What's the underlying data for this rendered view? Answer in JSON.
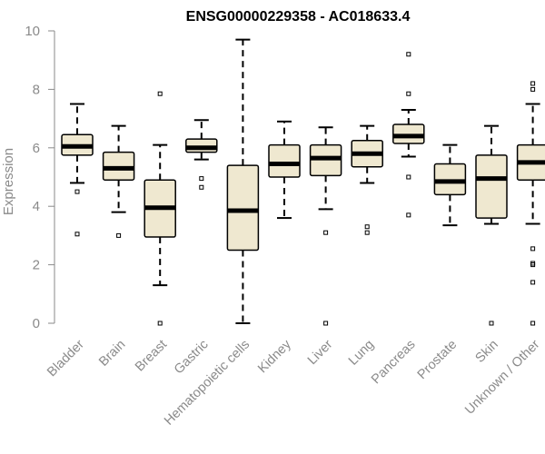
{
  "chart_data": {
    "type": "box",
    "title": "ENSG00000229358 - AC018633.4",
    "xlabel": "",
    "ylabel": "Expression",
    "ylim": [
      0,
      10
    ],
    "yticks": [
      0,
      2,
      4,
      6,
      8,
      10
    ],
    "grid": false,
    "box_fill": "#efe8d0",
    "categories": [
      "Bladder",
      "Brain",
      "Breast",
      "Gastric",
      "Hematopoietic cells",
      "Kidney",
      "Liver",
      "Lung",
      "Pancreas",
      "Prostate",
      "Skin",
      "Unknown / Other"
    ],
    "boxes": [
      {
        "category": "Bladder",
        "whisker_low": 4.8,
        "q1": 5.75,
        "median": 6.05,
        "q3": 6.45,
        "whisker_high": 7.5,
        "outliers": [
          4.5,
          3.05
        ]
      },
      {
        "category": "Brain",
        "whisker_low": 3.8,
        "q1": 4.9,
        "median": 5.3,
        "q3": 5.85,
        "whisker_high": 6.75,
        "outliers": [
          3.0
        ]
      },
      {
        "category": "Breast",
        "whisker_low": 1.3,
        "q1": 2.95,
        "median": 3.95,
        "q3": 4.9,
        "whisker_high": 6.1,
        "outliers": [
          7.85,
          0.0
        ]
      },
      {
        "category": "Gastric",
        "whisker_low": 5.6,
        "q1": 5.85,
        "median": 6.0,
        "q3": 6.3,
        "whisker_high": 6.95,
        "outliers": [
          4.95,
          4.65
        ]
      },
      {
        "category": "Hematopoietic cells",
        "whisker_low": 0.0,
        "q1": 2.5,
        "median": 3.85,
        "q3": 5.4,
        "whisker_high": 9.7,
        "outliers": []
      },
      {
        "category": "Kidney",
        "whisker_low": 3.6,
        "q1": 5.0,
        "median": 5.45,
        "q3": 6.1,
        "whisker_high": 6.9,
        "outliers": []
      },
      {
        "category": "Liver",
        "whisker_low": 3.9,
        "q1": 5.05,
        "median": 5.65,
        "q3": 6.1,
        "whisker_high": 6.7,
        "outliers": [
          3.1,
          0.0
        ]
      },
      {
        "category": "Lung",
        "whisker_low": 4.8,
        "q1": 5.35,
        "median": 5.8,
        "q3": 6.25,
        "whisker_high": 6.75,
        "outliers": [
          3.3,
          3.1
        ]
      },
      {
        "category": "Pancreas",
        "whisker_low": 5.7,
        "q1": 6.15,
        "median": 6.4,
        "q3": 6.8,
        "whisker_high": 7.3,
        "outliers": [
          9.2,
          7.85,
          5.0,
          3.7
        ]
      },
      {
        "category": "Prostate",
        "whisker_low": 3.35,
        "q1": 4.4,
        "median": 4.85,
        "q3": 5.45,
        "whisker_high": 6.1,
        "outliers": []
      },
      {
        "category": "Skin",
        "whisker_low": 3.4,
        "q1": 3.6,
        "median": 4.95,
        "q3": 5.75,
        "whisker_high": 6.75,
        "outliers": [
          0.0
        ]
      },
      {
        "category": "Unknown / Other",
        "whisker_low": 3.4,
        "q1": 4.9,
        "median": 5.5,
        "q3": 6.1,
        "whisker_high": 7.5,
        "outliers": [
          8.2,
          8.0,
          2.55,
          2.05,
          2.0,
          1.4,
          0.0
        ]
      }
    ]
  }
}
